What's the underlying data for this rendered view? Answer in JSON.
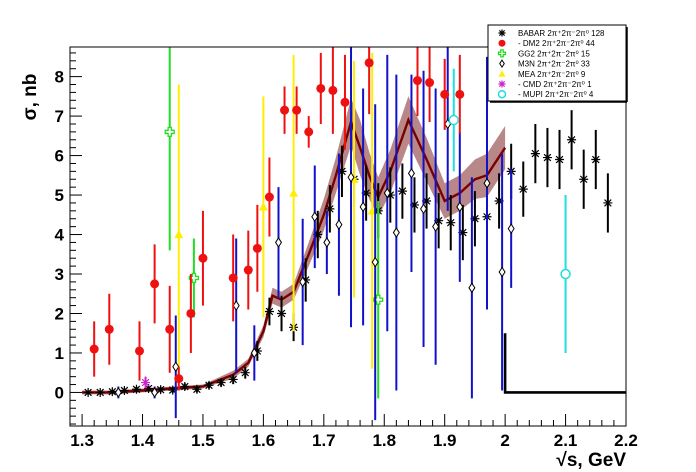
{
  "chart_data": {
    "type": "scatter",
    "xlabel": "√s, GeV",
    "ylabel": "σ, nb",
    "xlim": [
      1.28,
      2.2
    ],
    "ylim": [
      -0.85,
      8.75
    ],
    "x_ticks": [
      "1.3",
      "1.4",
      "1.5",
      "1.6",
      "1.7",
      "1.8",
      "1.9",
      "2",
      "2.1",
      "2.2"
    ],
    "y_ticks": [
      "0",
      "1",
      "2",
      "3",
      "4",
      "5",
      "6",
      "7",
      "8"
    ],
    "legend_position": "top-right",
    "grid": false,
    "series": [
      {
        "name": "BABAR 2π⁺2π⁻2π⁰ 128",
        "color": "#000000",
        "marker": "star",
        "points": [
          [
            1.31,
            0,
            0.05
          ],
          [
            1.33,
            0,
            0.05
          ],
          [
            1.35,
            0.02,
            0.05
          ],
          [
            1.37,
            0.05,
            0.05
          ],
          [
            1.39,
            0.08,
            0.06
          ],
          [
            1.41,
            0.1,
            0.07
          ],
          [
            1.43,
            0.07,
            0.07
          ],
          [
            1.45,
            0.06,
            0.07
          ],
          [
            1.47,
            0.15,
            0.08
          ],
          [
            1.49,
            0.08,
            0.08
          ],
          [
            1.51,
            0.18,
            0.08
          ],
          [
            1.53,
            0.25,
            0.1
          ],
          [
            1.55,
            0.33,
            0.12
          ],
          [
            1.57,
            0.5,
            0.15
          ],
          [
            1.59,
            1.05,
            0.25
          ],
          [
            1.61,
            2.05,
            0.35
          ],
          [
            1.63,
            2.0,
            0.45
          ],
          [
            1.65,
            1.65,
            0.35
          ],
          [
            1.67,
            2.85,
            0.55
          ],
          [
            1.69,
            4.0,
            0.6
          ],
          [
            1.71,
            4.65,
            0.6
          ],
          [
            1.73,
            5.6,
            0.65
          ],
          [
            1.75,
            5.4,
            0.7
          ],
          [
            1.77,
            5.05,
            0.7
          ],
          [
            1.79,
            4.6,
            0.7
          ],
          [
            1.81,
            5.0,
            0.7
          ],
          [
            1.83,
            5.1,
            0.7
          ],
          [
            1.85,
            4.75,
            0.7
          ],
          [
            1.87,
            4.85,
            0.7
          ],
          [
            1.89,
            4.35,
            0.7
          ],
          [
            1.91,
            4.3,
            0.7
          ],
          [
            1.93,
            4.05,
            0.7
          ],
          [
            1.95,
            4.4,
            0.7
          ],
          [
            1.97,
            4.45,
            0.7
          ],
          [
            1.99,
            4.85,
            0.7
          ],
          [
            2.01,
            5.6,
            0.7
          ],
          [
            2.03,
            5.15,
            0.7
          ],
          [
            2.05,
            6.05,
            0.75
          ],
          [
            2.07,
            5.95,
            0.75
          ],
          [
            2.09,
            5.9,
            0.75
          ],
          [
            2.11,
            6.4,
            0.75
          ],
          [
            2.13,
            5.4,
            0.75
          ],
          [
            2.15,
            5.9,
            0.75
          ],
          [
            2.17,
            4.8,
            0.75
          ]
        ]
      },
      {
        "name": "- DM2 2π⁺2π⁻2π⁰ 44",
        "color": "#ee1111",
        "marker": "circle",
        "points": [
          [
            1.32,
            1.1,
            0.7
          ],
          [
            1.345,
            1.6,
            0.9
          ],
          [
            1.395,
            1.05,
            0.75
          ],
          [
            1.42,
            2.75,
            1.0
          ],
          [
            1.445,
            1.6,
            1.1
          ],
          [
            1.46,
            0.35,
            0.3
          ],
          [
            1.48,
            2.0,
            1.0
          ],
          [
            1.5,
            3.4,
            1.2
          ],
          [
            1.55,
            2.9,
            1.1
          ],
          [
            1.575,
            3.1,
            1.0
          ],
          [
            1.59,
            3.65,
            1.1
          ],
          [
            1.61,
            4.95,
            1.0
          ],
          [
            1.635,
            7.15,
            0.6
          ],
          [
            1.655,
            7.15,
            0.6
          ],
          [
            1.675,
            6.6,
            0.4
          ],
          [
            1.695,
            7.7,
            0.9
          ],
          [
            1.715,
            7.65,
            1.1
          ],
          [
            1.735,
            7.35,
            1.2
          ],
          [
            1.775,
            8.35,
            1.3
          ],
          [
            1.855,
            7.9,
            0.9
          ],
          [
            1.875,
            7.85,
            1.0
          ],
          [
            1.9,
            7.55,
            0.9
          ],
          [
            1.925,
            7.55,
            1.0
          ]
        ]
      },
      {
        "name": "GG2 2π⁺2π⁻2π⁰ 15",
        "color": "#22dd22",
        "marker": "cross",
        "points": [
          [
            1.445,
            6.6,
            3.0
          ],
          [
            1.485,
            2.9,
            1.0
          ],
          [
            1.79,
            2.35,
            2.5
          ]
        ]
      },
      {
        "name": "M3N 2π⁺2π⁻2π⁰ 33",
        "color": "#1111cc",
        "marker": "diamond",
        "points": [
          [
            1.36,
            0.0,
            0.15
          ],
          [
            1.42,
            0.0,
            0.15
          ],
          [
            1.455,
            0.65,
            1.3
          ],
          [
            1.555,
            2.2,
            1.7
          ],
          [
            1.585,
            1.0,
            0.7
          ],
          [
            1.625,
            3.8,
            1.4
          ],
          [
            1.665,
            2.8,
            1.6
          ],
          [
            1.685,
            4.45,
            1.3
          ],
          [
            1.705,
            3.8,
            0.8
          ],
          [
            1.725,
            4.25,
            1.8
          ],
          [
            1.745,
            5.45,
            3.8
          ],
          [
            1.765,
            4.7,
            3.0
          ],
          [
            1.785,
            3.3,
            4.0
          ],
          [
            1.805,
            5.05,
            3.5
          ],
          [
            1.82,
            4.05,
            4.0
          ],
          [
            1.845,
            5.55,
            2.5
          ],
          [
            1.865,
            4.65,
            3.5
          ],
          [
            1.885,
            4.2,
            3.5
          ],
          [
            1.905,
            6.8,
            2.2
          ],
          [
            1.925,
            4.7,
            1.9
          ],
          [
            1.945,
            2.65,
            2.8
          ],
          [
            1.97,
            5.3,
            3.2
          ],
          [
            1.995,
            3.05,
            3.0
          ],
          [
            2.01,
            4.15,
            1.5
          ]
        ]
      },
      {
        "name": "MEA 2π⁺2π⁻2π⁰ 9",
        "color": "#ffee00",
        "marker": "triangle",
        "points": [
          [
            1.46,
            4.0,
            3.8
          ],
          [
            1.6,
            4.7,
            2.8
          ],
          [
            1.65,
            5.05,
            3.5
          ],
          [
            1.75,
            5.4,
            3.0
          ],
          [
            1.78,
            4.6,
            4.0
          ]
        ]
      },
      {
        "name": "- CMD 2π⁺2π⁻2π⁰ 1",
        "color": "#cc22cc",
        "marker": "star",
        "points": [
          [
            1.405,
            0.25,
            0.15
          ]
        ]
      },
      {
        "name": "- MUPI 2π⁺2π⁻2π⁰ 4",
        "color": "#22dddd",
        "marker": "circle-open",
        "points": [
          [
            1.915,
            6.9,
            1.3
          ],
          [
            2.1,
            3.0,
            2.0
          ]
        ]
      }
    ],
    "fit": {
      "color": "#7a0000",
      "band_color": "#a06060",
      "points": [
        [
          1.3,
          0.0
        ],
        [
          1.35,
          0.0
        ],
        [
          1.4,
          0.05
        ],
        [
          1.45,
          0.1
        ],
        [
          1.5,
          0.15
        ],
        [
          1.525,
          0.3
        ],
        [
          1.55,
          0.45
        ],
        [
          1.575,
          0.75
        ],
        [
          1.6,
          1.55
        ],
        [
          1.615,
          2.45
        ],
        [
          1.63,
          2.35
        ],
        [
          1.65,
          2.55
        ],
        [
          1.675,
          3.5
        ],
        [
          1.7,
          4.5
        ],
        [
          1.72,
          5.5
        ],
        [
          1.745,
          6.85
        ],
        [
          1.76,
          6.2
        ],
        [
          1.775,
          5.5
        ],
        [
          1.79,
          4.95
        ],
        [
          1.81,
          5.6
        ],
        [
          1.84,
          6.9
        ],
        [
          1.87,
          5.9
        ],
        [
          1.9,
          4.85
        ],
        [
          1.925,
          5.05
        ],
        [
          1.95,
          5.4
        ],
        [
          1.97,
          5.5
        ],
        [
          2.0,
          6.2
        ]
      ],
      "band_halfwidth": [
        0.05,
        0.05,
        0.05,
        0.05,
        0.05,
        0.07,
        0.1,
        0.1,
        0.15,
        0.2,
        0.2,
        0.2,
        0.3,
        0.4,
        0.45,
        0.6,
        0.7,
        0.6,
        0.5,
        0.55,
        0.6,
        0.55,
        0.45,
        0.45,
        0.5,
        0.55,
        0.55
      ]
    },
    "step": {
      "color": "#000000",
      "points": [
        [
          2.0,
          1.5
        ],
        [
          2.0,
          0.0
        ],
        [
          2.2,
          0.0
        ]
      ]
    }
  }
}
